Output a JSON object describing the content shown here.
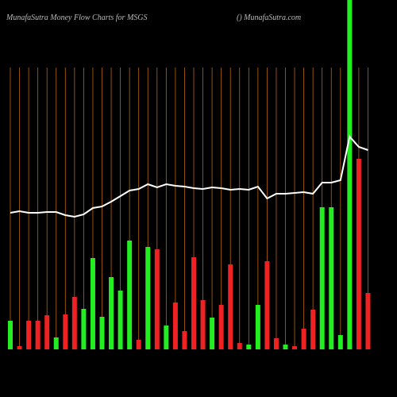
{
  "chart_data": {
    "type": "bar",
    "title": "MunafaSutra  Money Flow  Charts for MSGS",
    "subtitle": "() MunafaSutra.com",
    "categories": [
      null,
      null,
      null,
      null,
      null,
      null,
      null,
      null,
      null,
      null,
      null,
      null,
      null,
      null,
      null,
      null,
      null,
      null,
      null,
      null,
      null,
      null,
      null,
      null,
      null,
      null,
      null,
      null,
      null,
      null,
      null,
      null,
      null,
      null,
      null,
      null,
      null,
      null,
      null,
      null
    ],
    "ylim": [
      0,
      440
    ],
    "grid": true,
    "grid_color": "#b8650f",
    "series": [
      {
        "type": "bar",
        "values": [
          36,
          4,
          36,
          36,
          43,
          15,
          44,
          66,
          51,
          115,
          41,
          91,
          74,
          137,
          12,
          129,
          126,
          30,
          59,
          23,
          116,
          62,
          40,
          56,
          107,
          8,
          6,
          56,
          111,
          14,
          6,
          4,
          26,
          50,
          179,
          179,
          18,
          440,
          240,
          71
        ],
        "colors": [
          "#22ee22",
          "#ee2222",
          "#ee2222",
          "#ee2222",
          "#ee2222",
          "#22ee22",
          "#ee2222",
          "#ee2222",
          "#22ee22",
          "#22ee22",
          "#22ee22",
          "#22ee22",
          "#22ee22",
          "#22ee22",
          "#ee2222",
          "#22ee22",
          "#ee2222",
          "#22ee22",
          "#ee2222",
          "#ee2222",
          "#ee2222",
          "#ee2222",
          "#22ee22",
          "#ee2222",
          "#ee2222",
          "#ee2222",
          "#22ee22",
          "#22ee22",
          "#ee2222",
          "#ee2222",
          "#22ee22",
          "#ee2222",
          "#ee2222",
          "#ee2222",
          "#22ee22",
          "#22ee22",
          "#22ee22",
          "#22ee22",
          "#ee2222",
          "#ee2222"
        ]
      },
      {
        "type": "line",
        "color": "#ffffff",
        "values": [
          172,
          174,
          172,
          172,
          173,
          173,
          169,
          167,
          170,
          178,
          180,
          186,
          193,
          200,
          202,
          208,
          204,
          208,
          206,
          205,
          203,
          202,
          204,
          203,
          201,
          202,
          201,
          205,
          190,
          196,
          196,
          197,
          198,
          196,
          210,
          210,
          213,
          268,
          255,
          251
        ]
      }
    ]
  }
}
